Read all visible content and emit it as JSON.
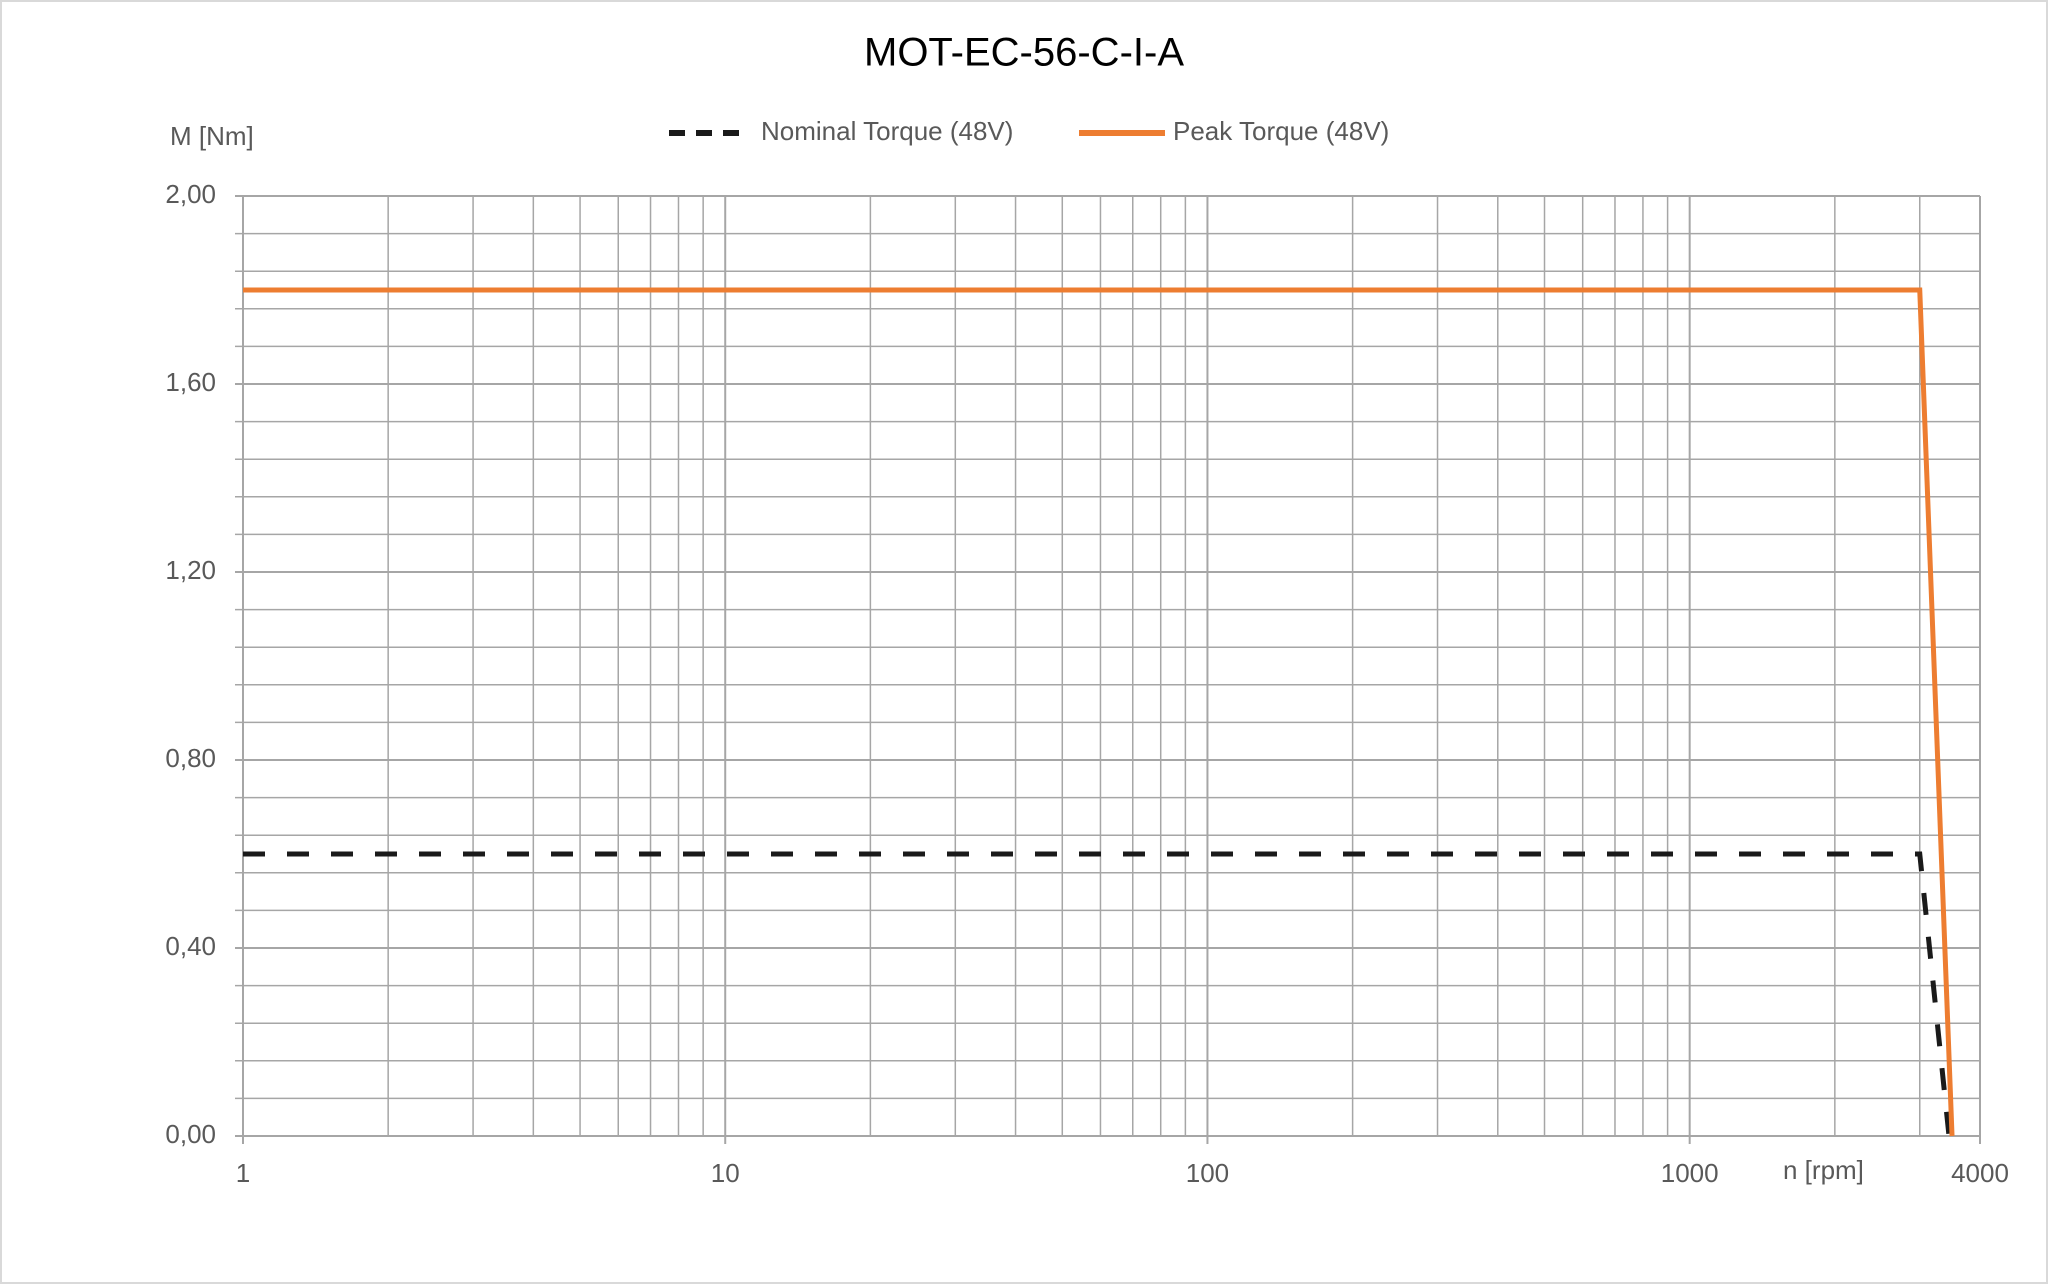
{
  "chart_data": {
    "type": "line",
    "title": "MOT-EC-56-C-I-A",
    "y_label": "M [Nm]",
    "x_label": "n [rpm]",
    "x_scale": "log",
    "xlim": [
      1,
      4000
    ],
    "xticks": [
      1,
      10,
      100,
      1000,
      4000
    ],
    "ylim": [
      0,
      2
    ],
    "yticks": [
      {
        "value": 0,
        "label": "0,00"
      },
      {
        "value": 0.4,
        "label": "0,40"
      },
      {
        "value": 0.8,
        "label": "0,80"
      },
      {
        "value": 1.2,
        "label": "1,20"
      },
      {
        "value": 1.6,
        "label": "1,60"
      },
      {
        "value": 2,
        "label": "2,00"
      }
    ],
    "grid": true,
    "legend": "top",
    "series": [
      {
        "name": "Nominal Torque (48V)",
        "color": "#1a1a1a",
        "line_style": "dashed",
        "x": [
          1,
          3000,
          3450
        ],
        "values": [
          0.6,
          0.6,
          0
        ]
      },
      {
        "name": "Peak Torque (48V)",
        "color": "#ed7d31",
        "line_style": "solid",
        "x": [
          1,
          3000,
          3500
        ],
        "values": [
          1.8,
          1.8,
          0
        ]
      }
    ]
  }
}
